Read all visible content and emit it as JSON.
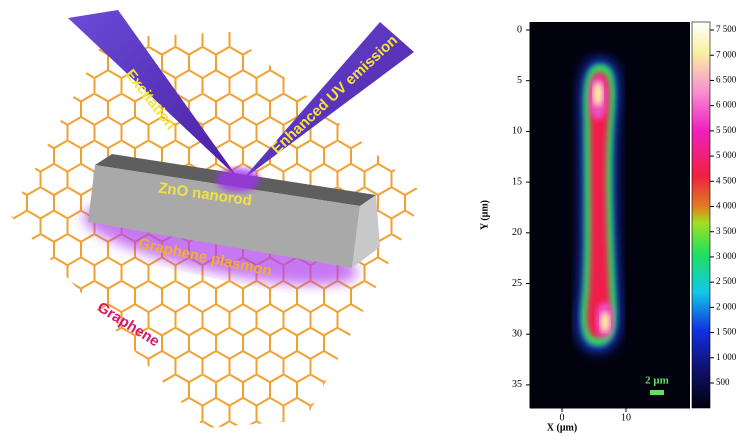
{
  "schematic": {
    "labels": {
      "excitation": "Excitation",
      "emission": "Enhanced UV emission",
      "nanorod": "ZnO nanorod",
      "plasmon": "Graphene plasmon",
      "graphene": "Graphene"
    }
  },
  "map": {
    "x_axis": {
      "label": "X (μm)",
      "ticks": [
        0,
        10
      ]
    },
    "y_axis": {
      "label": "Y (μm)",
      "ticks": [
        0,
        5,
        10,
        15,
        20,
        25,
        30,
        35
      ]
    },
    "colorbar": {
      "ticks": [
        {
          "value": 7500,
          "label": "7 500"
        },
        {
          "value": 7000,
          "label": "7 000"
        },
        {
          "value": 6500,
          "label": "6 500"
        },
        {
          "value": 6000,
          "label": "6 000"
        },
        {
          "value": 5500,
          "label": "5 500"
        },
        {
          "value": 5000,
          "label": "5 000"
        },
        {
          "value": 4500,
          "label": "4 500"
        },
        {
          "value": 4000,
          "label": "4 000"
        },
        {
          "value": 3500,
          "label": "3 500"
        },
        {
          "value": 3000,
          "label": "3 000"
        },
        {
          "value": 2500,
          "label": "2 500"
        },
        {
          "value": 2000,
          "label": "2 000"
        },
        {
          "value": 1500,
          "label": "1 500"
        },
        {
          "value": 1000,
          "label": "1 000"
        },
        {
          "value": 500,
          "label": "500"
        }
      ]
    },
    "scale_bar": "2 μm"
  }
}
